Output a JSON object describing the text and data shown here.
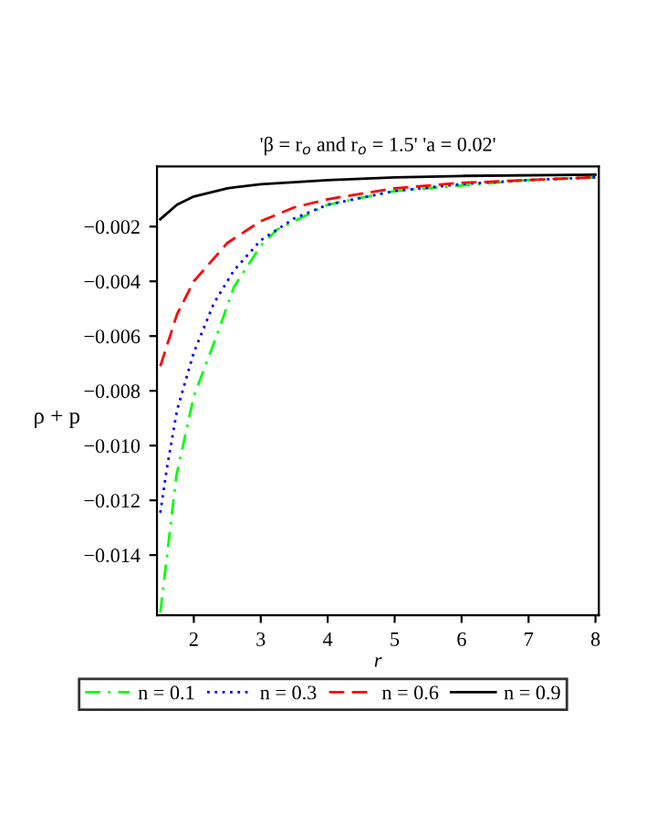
{
  "chart_data": {
    "type": "line",
    "title": "'β = r$_{o}$ and r$_{o}$ = 1.5' 'a = 0.02'",
    "xlabel": "r",
    "ylabel": "ρ + p",
    "xlim": [
      1.45,
      8.05
    ],
    "ylim": [
      -0.0162,
      0.0002
    ],
    "xticks": [
      2,
      3,
      4,
      5,
      6,
      7,
      8
    ],
    "yticks": [
      {
        "value": -0.014,
        "label": "−0.014"
      },
      {
        "value": -0.012,
        "label": "−0.012"
      },
      {
        "value": -0.01,
        "label": "−0.010"
      },
      {
        "value": -0.008,
        "label": "−0.008"
      },
      {
        "value": -0.006,
        "label": "−0.006"
      },
      {
        "value": -0.004,
        "label": "−0.004"
      },
      {
        "value": -0.002,
        "label": "−0.002"
      }
    ],
    "grid": false,
    "legend": "bottom",
    "marker": "none",
    "series": [
      {
        "name": "n = 0.1",
        "color": "#00ff00",
        "line_style": "dashdot",
        "x": [
          1.5,
          1.74,
          2.0,
          2.34,
          2.6,
          3.0,
          3.25,
          4,
          5,
          6,
          7,
          8
        ],
        "values": [
          -0.0161,
          -0.0111,
          -0.0082,
          -0.006,
          -0.0042,
          -0.0027,
          -0.0021,
          -0.0012,
          -0.0007,
          -0.0005,
          -0.0003,
          -0.0002
        ]
      },
      {
        "name": "n = 0.3",
        "color": "#0000ff",
        "line_style": "dotted",
        "x": [
          1.5,
          1.6,
          1.75,
          2,
          2.3,
          2.6,
          3,
          3.5,
          4,
          5,
          6,
          7,
          8
        ],
        "values": [
          -0.01245,
          -0.0108,
          -0.0087,
          -0.0066,
          -0.0048,
          -0.0036,
          -0.0025,
          -0.0017,
          -0.0012,
          -0.0007,
          -0.00045,
          -0.0003,
          -0.0002
        ]
      },
      {
        "name": "n = 0.6",
        "color": "#ff0000",
        "line_style": "dashed",
        "x": [
          1.5,
          1.75,
          2,
          2.5,
          3,
          3.5,
          4,
          5,
          6,
          7,
          8
        ],
        "values": [
          -0.0071,
          -0.0052,
          -0.004,
          -0.0026,
          -0.0018,
          -0.0013,
          -0.001,
          -0.0006,
          -0.0004,
          -0.0003,
          -0.0002
        ]
      },
      {
        "name": "n = 0.9",
        "color": "#000000",
        "line_style": "solid",
        "x": [
          1.5,
          1.75,
          2,
          2.5,
          3,
          4,
          5,
          6,
          8
        ],
        "values": [
          -0.00173,
          -0.0012,
          -0.0009,
          -0.0006,
          -0.00045,
          -0.0003,
          -0.0002,
          -0.00015,
          -0.0001
        ]
      }
    ]
  }
}
